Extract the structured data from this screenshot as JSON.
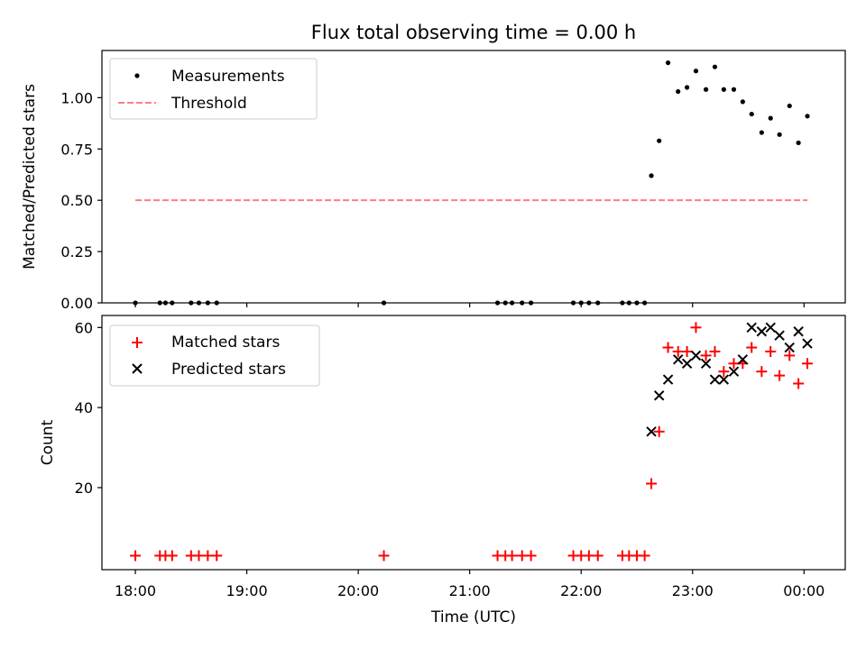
{
  "chart_data": [
    {
      "type": "scatter",
      "title": "Flux total observing time = 0.00 h",
      "xlabel": "",
      "ylabel": "Matched/Predicted stars",
      "ylim": [
        0,
        1.23
      ],
      "yticks": [
        0.0,
        0.25,
        0.5,
        0.75,
        1.0
      ],
      "ytick_labels": [
        "0.00",
        "0.25",
        "0.50",
        "0.75",
        "1.00"
      ],
      "legend": {
        "placement": "top-left",
        "entries": [
          "Measurements",
          "Threshold"
        ]
      },
      "series": [
        {
          "name": "Measurements",
          "color": "#000000",
          "marker": "dot",
          "x": [
            18.0,
            18.22,
            18.27,
            18.33,
            18.5,
            18.57,
            18.65,
            18.73,
            20.23,
            21.25,
            21.32,
            21.38,
            21.47,
            21.55,
            21.93,
            22.0,
            22.07,
            22.15,
            22.37,
            22.43,
            22.5,
            22.57,
            22.63,
            22.7,
            22.78,
            22.87,
            22.95,
            23.03,
            23.12,
            23.2,
            23.28,
            23.37,
            23.45,
            23.53,
            23.62,
            23.7,
            23.78,
            23.87,
            23.95,
            24.03
          ],
          "y": [
            0,
            0,
            0,
            0,
            0,
            0,
            0,
            0,
            0,
            0,
            0,
            0,
            0,
            0,
            0,
            0,
            0,
            0,
            0,
            0,
            0,
            0,
            0.62,
            0.79,
            1.17,
            1.03,
            1.05,
            1.13,
            1.04,
            1.15,
            1.04,
            1.04,
            0.98,
            0.92,
            0.83,
            0.9,
            0.82,
            0.96,
            0.78,
            0.91
          ]
        },
        {
          "name": "Threshold",
          "color": "#ff7f7f",
          "style": "dashed",
          "x": [
            18.0,
            24.03
          ],
          "y": [
            0.5,
            0.5
          ]
        }
      ]
    },
    {
      "type": "scatter",
      "title": "",
      "xlabel": "Time (UTC)",
      "ylabel": "Count",
      "ylim": [
        -0.5,
        63.0
      ],
      "xlim": [
        17.7,
        24.37
      ],
      "yticks": [
        20,
        40,
        60
      ],
      "ytick_labels": [
        "20",
        "40",
        "60"
      ],
      "xticks": [
        18,
        19,
        20,
        21,
        22,
        23,
        24
      ],
      "xtick_labels": [
        "18:00",
        "19:00",
        "20:00",
        "21:00",
        "22:00",
        "23:00",
        "00:00"
      ],
      "legend": {
        "placement": "top-left",
        "entries": [
          "Matched stars",
          "Predicted stars"
        ]
      },
      "series": [
        {
          "name": "Matched stars",
          "color": "#ff0000",
          "marker": "plus",
          "x": [
            18.0,
            18.22,
            18.27,
            18.33,
            18.5,
            18.57,
            18.65,
            18.73,
            20.23,
            21.25,
            21.32,
            21.38,
            21.47,
            21.55,
            21.93,
            22.0,
            22.07,
            22.15,
            22.37,
            22.43,
            22.5,
            22.57,
            22.63,
            22.7,
            22.78,
            22.87,
            22.95,
            23.03,
            23.12,
            23.2,
            23.28,
            23.37,
            23.45,
            23.53,
            23.62,
            23.7,
            23.78,
            23.87,
            23.95,
            24.03
          ],
          "y": [
            3,
            3,
            3,
            3,
            3,
            3,
            3,
            3,
            3,
            3,
            3,
            3,
            3,
            3,
            3,
            3,
            3,
            3,
            3,
            3,
            3,
            3,
            21,
            34,
            55,
            54,
            54,
            60,
            53,
            54,
            49,
            51,
            51,
            55,
            49,
            54,
            48,
            53,
            46,
            51
          ]
        },
        {
          "name": "Predicted stars",
          "color": "#000000",
          "marker": "x",
          "x": [
            22.63,
            22.7,
            22.78,
            22.87,
            22.95,
            23.03,
            23.12,
            23.2,
            23.28,
            23.37,
            23.45,
            23.53,
            23.62,
            23.7,
            23.78,
            23.87,
            23.95,
            24.03
          ],
          "y": [
            34,
            43,
            47,
            52,
            51,
            53,
            51,
            47,
            47,
            49,
            52,
            60,
            59,
            60,
            58,
            55,
            59,
            56
          ]
        }
      ]
    }
  ]
}
